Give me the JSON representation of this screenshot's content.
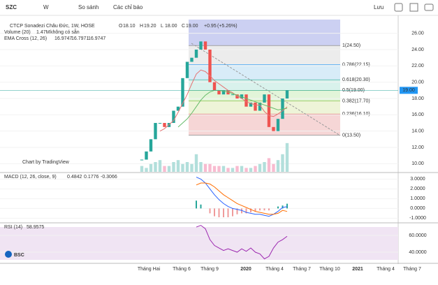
{
  "toolbar": {
    "symbol": "SZC",
    "interval": "W",
    "compare": "So sánh",
    "indicators": "Các chỉ báo",
    "save": "Lưu"
  },
  "chart_data": [
    {
      "type": "candlestick",
      "title": "CTCP Sonadezi Châu Đức, 1W, HOSE",
      "ohlc": [
        {
          "name": "O",
          "value": 18.1,
          "label": "18.10"
        },
        {
          "name": "H",
          "value": 19.2,
          "label": "19.20"
        },
        {
          "name": "L",
          "value": 18,
          "label": "18.00"
        },
        {
          "name": "C",
          "value": 19,
          "label": "19.00"
        }
      ],
      "change": {
        "value": 0.95,
        "label": "+0.95"
      },
      "change_pct": {
        "value": 5.26,
        "label": "(+5.26%)"
      },
      "current_price": {
        "value": 19,
        "label": "19.00"
      },
      "values": [
        10.5,
        11.5,
        13,
        15,
        15,
        14.5,
        15,
        16.5,
        17,
        20.5,
        22.5,
        23,
        24,
        25,
        24,
        20,
        19,
        18.5,
        19,
        18.5,
        18.5,
        18,
        18.5,
        17,
        17.5,
        16.5,
        17.5,
        18.5,
        14.5,
        14,
        15.5,
        18,
        19
      ],
      "volume_title": "Volume (20)",
      "volume_last": {
        "value": 1.47,
        "label": "1.47M"
      },
      "volume_note": "không có sẵn",
      "volume": [
        0.3,
        0.2,
        0.4,
        0.5,
        0.6,
        0.3,
        0.3,
        0.5,
        0.6,
        0.4,
        0.5,
        0.4,
        0.9,
        0.5,
        0.4,
        0.4,
        0.3,
        0.3,
        0.3,
        0.2,
        0.2,
        0.3,
        0.3,
        0.2,
        0.2,
        0.3,
        0.4,
        0.5,
        0.7,
        0.4,
        0.6,
        0.9,
        1.47
      ],
      "vlim": [
        0,
        8
      ],
      "ema_title": "EMA Cross (12, 26)",
      "ema_legend_values": [
        16.9747,
        16.7971,
        16.9747
      ],
      "series": [
        {
          "name": "EMA 12",
          "color": "#e57373",
          "values": [
            null,
            null,
            null,
            null,
            14,
            14.3,
            14.8,
            15.3,
            16.3,
            17.4,
            18.5,
            19.8,
            21,
            21.5,
            21.3,
            20.8,
            20.2,
            19.8,
            19.4,
            19,
            18.7,
            18.3,
            18,
            17.6,
            17.4,
            17.2,
            17.2,
            16.4,
            15.9,
            15.8,
            16.1,
            16.5,
            16.9747
          ]
        },
        {
          "name": "EMA 26",
          "color": "#66bb6a",
          "values": [
            null,
            null,
            null,
            null,
            null,
            null,
            null,
            null,
            14.5,
            15,
            15.5,
            16.2,
            17,
            17.8,
            18.4,
            18.8,
            19,
            19,
            18.9,
            18.8,
            18.6,
            18.4,
            18.2,
            18,
            17.8,
            17.6,
            17.4,
            17.2,
            17,
            16.8,
            16.6,
            16.7,
            16.7971
          ]
        }
      ],
      "fib": [
        {
          "price": 24.5,
          "label": "1(24.50)"
        },
        {
          "price": 22.15,
          "label": "0.786(22.15)"
        },
        {
          "price": 20.3,
          "label": "0.618(20.30)"
        },
        {
          "price": 19,
          "label": "0.5(19.00)"
        },
        {
          "price": 17.7,
          "label": "0.382(17.70)"
        },
        {
          "price": 16.1,
          "label": "0.236(16.10)"
        },
        {
          "price": 13.5,
          "label": "0(13.50)"
        }
      ],
      "ylim": [
        9,
        28.2
      ],
      "yticks": [
        {
          "value": 26,
          "label": "26.00"
        },
        {
          "value": 24,
          "label": "24.00"
        },
        {
          "value": 22,
          "label": "22.00"
        },
        {
          "value": 20,
          "label": "20.00"
        },
        {
          "value": 18,
          "label": "18.00"
        },
        {
          "value": 16,
          "label": "16.00"
        },
        {
          "value": 14,
          "label": "14.00"
        },
        {
          "value": 12,
          "label": "12.00"
        },
        {
          "value": 10,
          "label": "10.00"
        }
      ],
      "time_labels": [
        "Tháng Hai",
        "Tháng 6",
        "Tháng 9",
        "2020",
        "Tháng 4",
        "Tháng 7",
        "Tháng 10",
        "2021",
        "Tháng 4",
        "Tháng 7"
      ],
      "watermark": "Chart by TradingView",
      "logo": "BSC"
    },
    {
      "type": "macd",
      "title": "MACD (12, 26, close, 9)",
      "legend_values": [
        0.4842,
        0.1776,
        -0.3066
      ],
      "histogram": [
        null,
        null,
        null,
        null,
        null,
        null,
        null,
        null,
        null,
        null,
        null,
        null,
        0.8,
        0.4,
        0,
        -0.5,
        -0.8,
        -0.9,
        -0.9,
        -0.9,
        -0.8,
        -0.6,
        -0.5,
        -0.5,
        -0.4,
        -0.3,
        -0.2,
        -0.2,
        -0.2,
        0,
        0.2,
        0.3,
        0.4842
      ],
      "series": [
        {
          "name": "MACD",
          "color": "#2962ff",
          "values": [
            null,
            null,
            null,
            null,
            null,
            null,
            null,
            null,
            null,
            null,
            null,
            null,
            3.2,
            3.0,
            2.6,
            2.0,
            1.4,
            0.9,
            0.5,
            0.2,
            0,
            -0.1,
            -0.2,
            -0.4,
            -0.5,
            -0.6,
            -0.6,
            -0.7,
            -0.8,
            -0.6,
            -0.3,
            0.1,
            0.1776
          ]
        },
        {
          "name": "Signal",
          "color": "#ff6d00",
          "values": [
            null,
            null,
            null,
            null,
            null,
            null,
            null,
            null,
            null,
            null,
            null,
            null,
            2.4,
            2.6,
            2.6,
            2.5,
            2.2,
            1.8,
            1.4,
            1.1,
            0.8,
            0.5,
            0.3,
            0.1,
            -0.1,
            -0.3,
            -0.4,
            -0.5,
            -0.6,
            -0.6,
            -0.5,
            -0.2,
            -0.3066
          ]
        }
      ],
      "ylim": [
        -1.4,
        3.6
      ],
      "yticks": [
        {
          "value": 3,
          "label": "3.0000"
        },
        {
          "value": 2,
          "label": "2.0000"
        },
        {
          "value": 1,
          "label": "1.0000"
        },
        {
          "value": 0,
          "label": "0.0000"
        },
        {
          "value": -1,
          "label": "-1.0000"
        }
      ]
    },
    {
      "type": "rsi",
      "title": "RSI (14)",
      "legend_values": [
        58.9575
      ],
      "series": [
        {
          "name": "RSI",
          "color": "#9c27b0",
          "values": [
            null,
            null,
            null,
            null,
            null,
            null,
            null,
            null,
            null,
            null,
            null,
            null,
            70,
            72,
            68,
            55,
            48,
            45,
            42,
            44,
            42,
            40,
            44,
            41,
            45,
            40,
            38,
            32,
            35,
            45,
            52,
            55,
            58.9575
          ]
        }
      ],
      "ylim": [
        27.5,
        74.2
      ],
      "yticks": [
        {
          "value": 60,
          "label": "60.0000"
        },
        {
          "value": 40,
          "label": "40.0000"
        }
      ]
    }
  ]
}
